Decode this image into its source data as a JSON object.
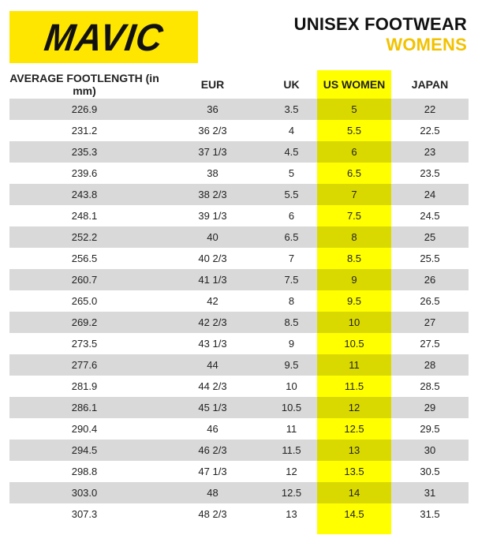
{
  "brand": {
    "logo_text": "MAVIC",
    "logo_bg": "#ffe600"
  },
  "heading": {
    "title": "UNISEX FOOTWEAR",
    "subtitle": "WOMENS",
    "subtitle_color": "#f2c200"
  },
  "table": {
    "highlight_color": "#ffff00",
    "headers": [
      "AVERAGE FOOTLENGTH (in mm)",
      "EUR",
      "UK",
      "US WOMEN",
      "JAPAN"
    ],
    "rows": [
      [
        "226.9",
        "36",
        "3.5",
        "5",
        "22"
      ],
      [
        "231.2",
        "36 2/3",
        "4",
        "5.5",
        "22.5"
      ],
      [
        "235.3",
        "37 1/3",
        "4.5",
        "6",
        "23"
      ],
      [
        "239.6",
        "38",
        "5",
        "6.5",
        "23.5"
      ],
      [
        "243.8",
        "38 2/3",
        "5.5",
        "7",
        "24"
      ],
      [
        "248.1",
        "39 1/3",
        "6",
        "7.5",
        "24.5"
      ],
      [
        "252.2",
        "40",
        "6.5",
        "8",
        "25"
      ],
      [
        "256.5",
        "40 2/3",
        "7",
        "8.5",
        "25.5"
      ],
      [
        "260.7",
        "41 1/3",
        "7.5",
        "9",
        "26"
      ],
      [
        "265.0",
        "42",
        "8",
        "9.5",
        "26.5"
      ],
      [
        "269.2",
        "42 2/3",
        "8.5",
        "10",
        "27"
      ],
      [
        "273.5",
        "43 1/3",
        "9",
        "10.5",
        "27.5"
      ],
      [
        "277.6",
        "44",
        "9.5",
        "11",
        "28"
      ],
      [
        "281.9",
        "44 2/3",
        "10",
        "11.5",
        "28.5"
      ],
      [
        "286.1",
        "45 1/3",
        "10.5",
        "12",
        "29"
      ],
      [
        "290.4",
        "46",
        "11",
        "12.5",
        "29.5"
      ],
      [
        "294.5",
        "46 2/3",
        "11.5",
        "13",
        "30"
      ],
      [
        "298.8",
        "47 1/3",
        "12",
        "13.5",
        "30.5"
      ],
      [
        "303.0",
        "48",
        "12.5",
        "14",
        "31"
      ],
      [
        "307.3",
        "48 2/3",
        "13",
        "14.5",
        "31.5"
      ]
    ]
  }
}
